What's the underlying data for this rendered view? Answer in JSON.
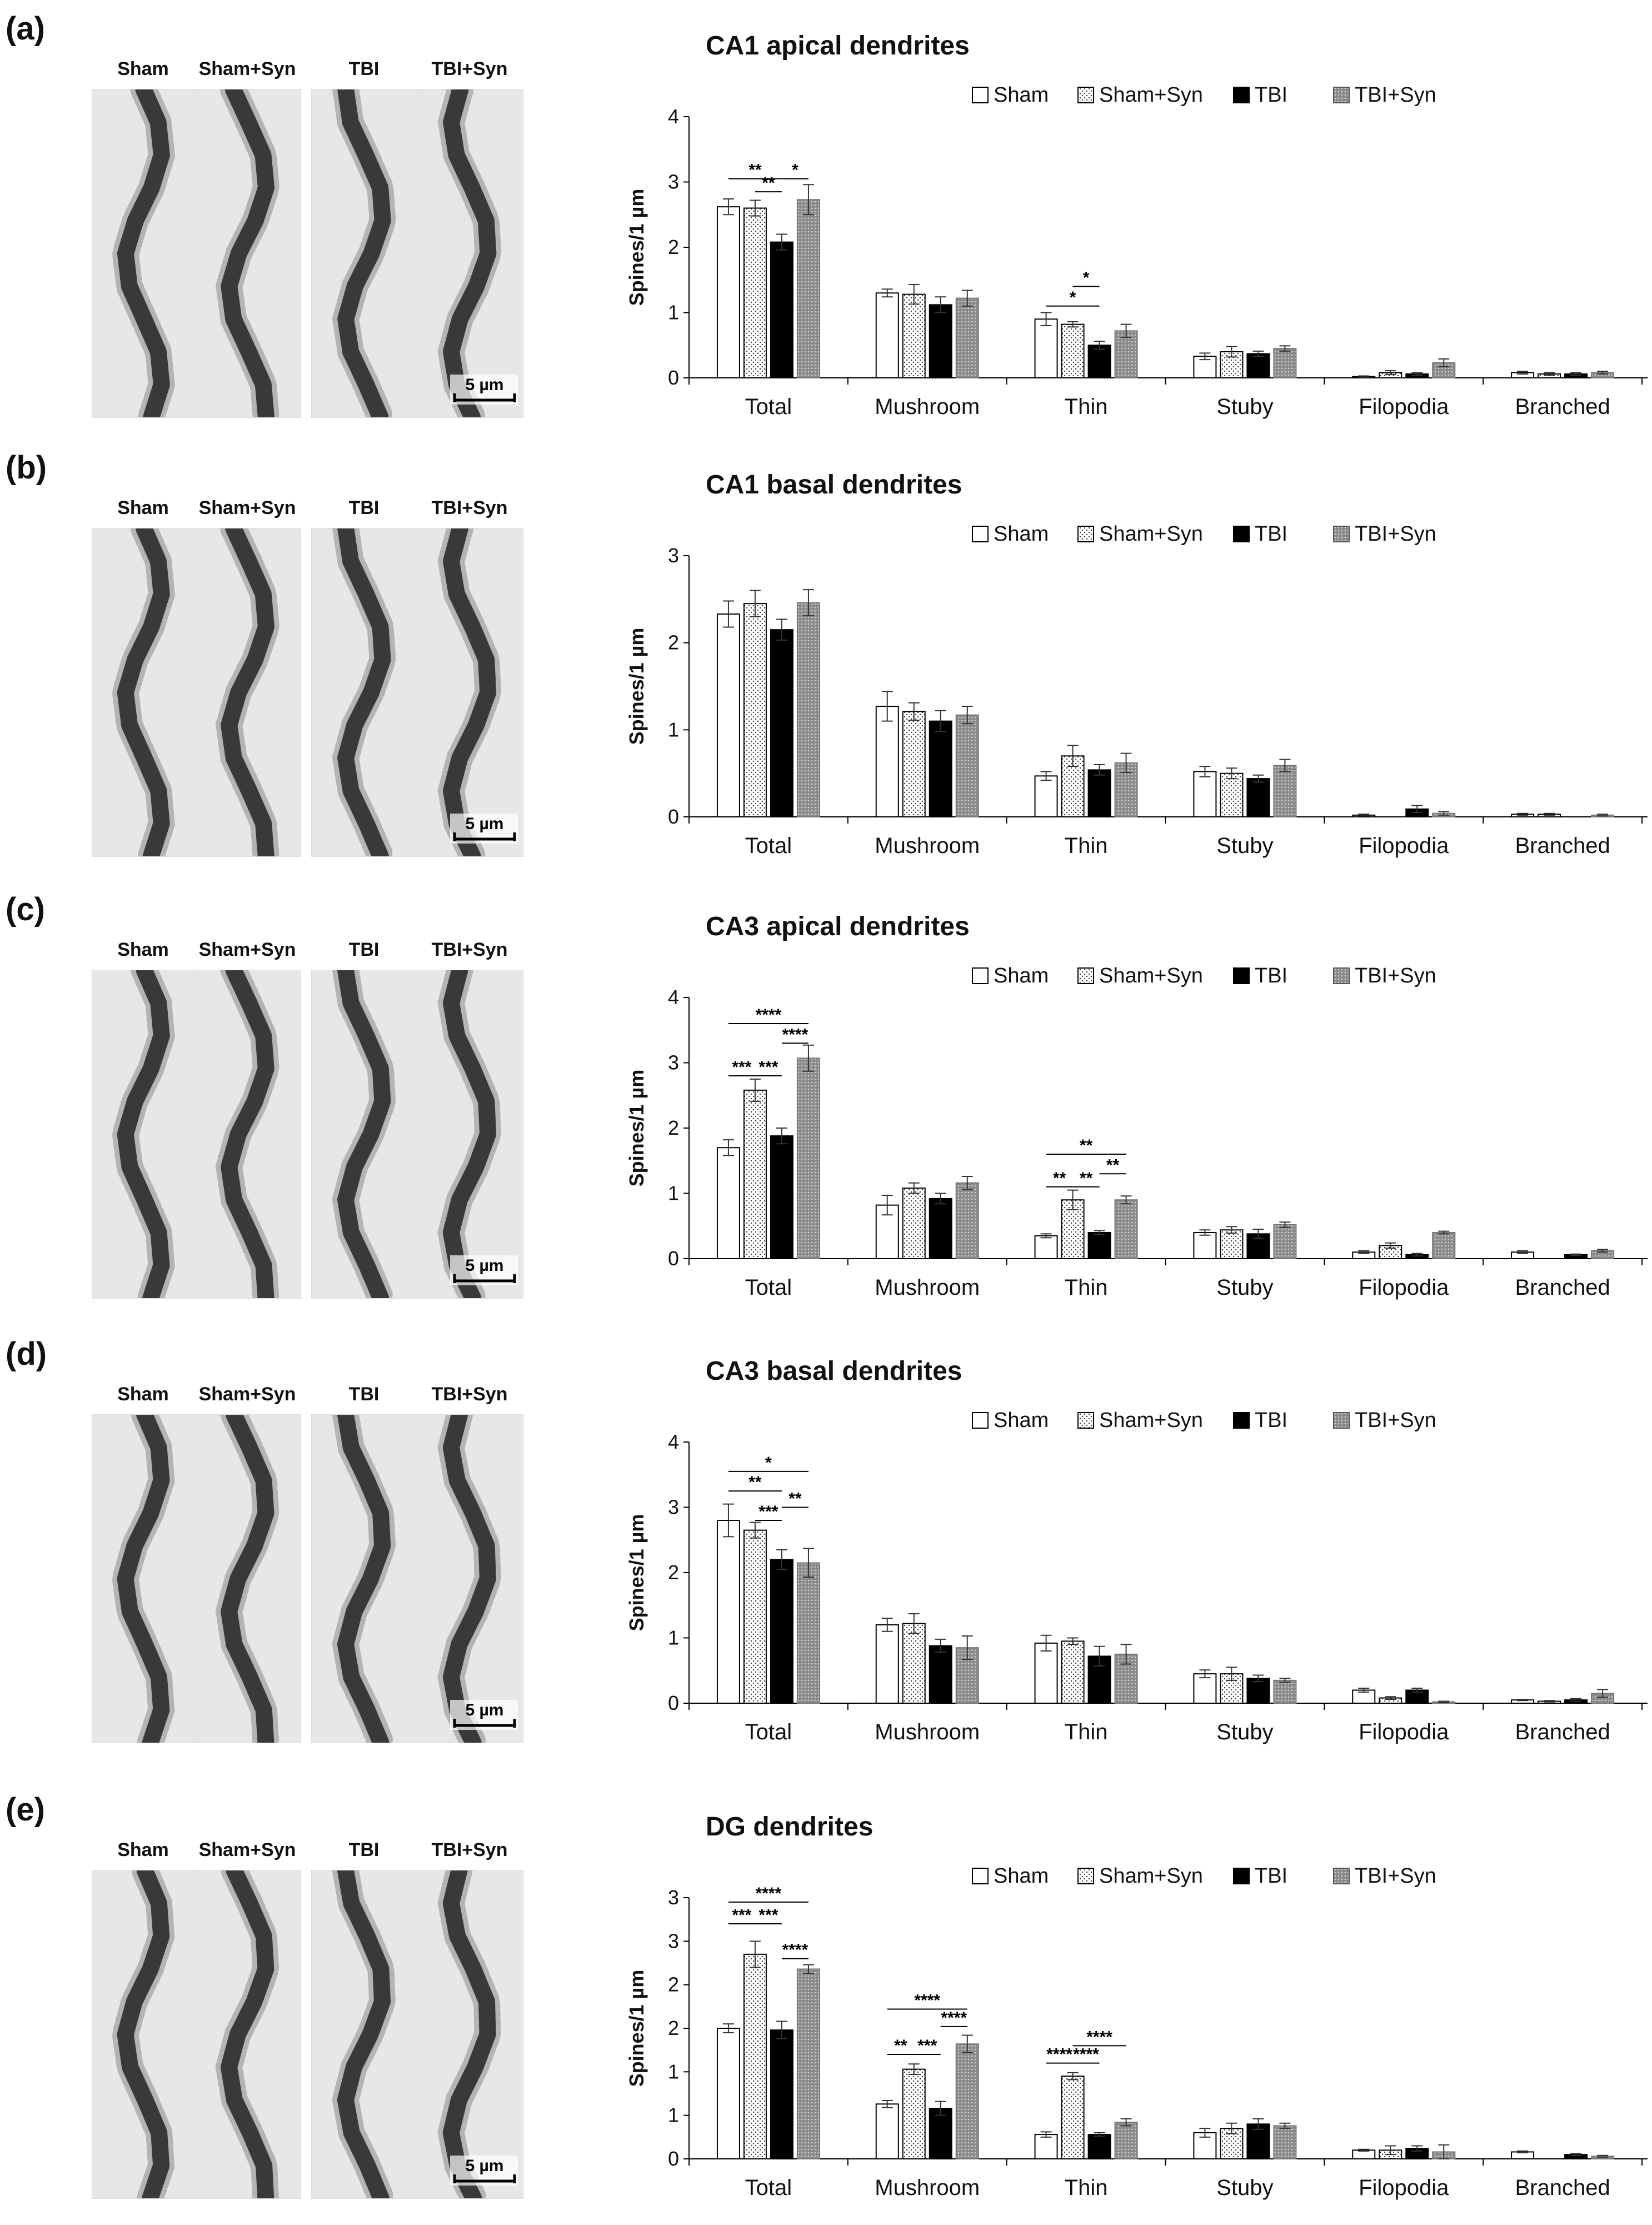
{
  "micrograph_headers": [
    "Sham",
    "Sham+Syn",
    "TBI",
    "TBI+Syn"
  ],
  "scale_bar_label": "5 µm",
  "chart_data": [
    {
      "type": "bar",
      "panel_label": "(a)",
      "title": "CA1 apical dendrites",
      "ylabel": "Spines/1 µm",
      "ylim": [
        0,
        4
      ],
      "yticks": [
        0,
        1,
        2,
        3,
        4
      ],
      "ytick_labels": [
        "0",
        "1",
        "2",
        "3",
        "4"
      ],
      "categories": [
        "Total",
        "Mushroom",
        "Thin",
        "Stuby",
        "Filopodia",
        "Branched"
      ],
      "series": [
        {
          "name": "Sham",
          "values": [
            2.62,
            1.3,
            0.9,
            0.33,
            0.02,
            0.08
          ],
          "errors": [
            0.12,
            0.06,
            0.1,
            0.05,
            0.01,
            0.02
          ]
        },
        {
          "name": "Sham+Syn",
          "values": [
            2.6,
            1.28,
            0.82,
            0.4,
            0.08,
            0.06
          ],
          "errors": [
            0.12,
            0.15,
            0.04,
            0.08,
            0.03,
            0.02
          ]
        },
        {
          "name": "TBI",
          "values": [
            2.08,
            1.12,
            0.5,
            0.37,
            0.06,
            0.06
          ],
          "errors": [
            0.12,
            0.12,
            0.06,
            0.04,
            0.02,
            0.02
          ]
        },
        {
          "name": "TBI+Syn",
          "values": [
            2.73,
            1.22,
            0.72,
            0.45,
            0.23,
            0.08
          ],
          "errors": [
            0.23,
            0.12,
            0.1,
            0.04,
            0.06,
            0.02
          ]
        }
      ],
      "significance": [
        {
          "category": "Total",
          "from": 0,
          "to": 2,
          "y": 3.05,
          "label": "**"
        },
        {
          "category": "Total",
          "from": 1,
          "to": 2,
          "y": 2.85,
          "label": "**"
        },
        {
          "category": "Total",
          "from": 2,
          "to": 3,
          "y": 3.05,
          "label": "*"
        },
        {
          "category": "Thin",
          "from": 0,
          "to": 2,
          "y": 1.1,
          "label": "*"
        },
        {
          "category": "Thin",
          "from": 1,
          "to": 2,
          "y": 1.4,
          "label": "*"
        }
      ]
    },
    {
      "type": "bar",
      "panel_label": "(b)",
      "title": "CA1 basal dendrites",
      "ylabel": "Spines/1 µm",
      "ylim": [
        0,
        3
      ],
      "yticks": [
        0,
        1,
        2,
        3
      ],
      "ytick_labels": [
        "0",
        "1",
        "2",
        "3"
      ],
      "categories": [
        "Total",
        "Mushroom",
        "Thin",
        "Stuby",
        "Filopodia",
        "Branched"
      ],
      "series": [
        {
          "name": "Sham",
          "values": [
            2.33,
            1.27,
            0.47,
            0.52,
            0.02,
            0.03
          ],
          "errors": [
            0.15,
            0.17,
            0.05,
            0.06,
            0.01,
            0.01
          ]
        },
        {
          "name": "Sham+Syn",
          "values": [
            2.45,
            1.21,
            0.7,
            0.5,
            0.0,
            0.03
          ],
          "errors": [
            0.15,
            0.1,
            0.12,
            0.06,
            0.0,
            0.01
          ]
        },
        {
          "name": "TBI",
          "values": [
            2.15,
            1.1,
            0.54,
            0.44,
            0.09,
            0.0
          ],
          "errors": [
            0.12,
            0.12,
            0.06,
            0.04,
            0.04,
            0.0
          ]
        },
        {
          "name": "TBI+Syn",
          "values": [
            2.46,
            1.17,
            0.62,
            0.59,
            0.04,
            0.02
          ],
          "errors": [
            0.15,
            0.1,
            0.11,
            0.07,
            0.02,
            0.01
          ]
        }
      ],
      "significance": []
    },
    {
      "type": "bar",
      "panel_label": "(c)",
      "title": "CA3 apical dendrites",
      "ylabel": "Spines/1 µm",
      "ylim": [
        0,
        4
      ],
      "yticks": [
        0,
        1,
        2,
        3,
        4
      ],
      "ytick_labels": [
        "0",
        "1",
        "2",
        "3",
        "4"
      ],
      "categories": [
        "Total",
        "Mushroom",
        "Thin",
        "Stuby",
        "Filopodia",
        "Branched"
      ],
      "series": [
        {
          "name": "Sham",
          "values": [
            1.7,
            0.82,
            0.35,
            0.4,
            0.1,
            0.1
          ],
          "errors": [
            0.12,
            0.15,
            0.03,
            0.04,
            0.02,
            0.02
          ]
        },
        {
          "name": "Sham+Syn",
          "values": [
            2.58,
            1.08,
            0.9,
            0.44,
            0.2,
            0.0
          ],
          "errors": [
            0.17,
            0.08,
            0.15,
            0.05,
            0.04,
            0.0
          ]
        },
        {
          "name": "TBI",
          "values": [
            1.88,
            0.92,
            0.4,
            0.38,
            0.06,
            0.06
          ],
          "errors": [
            0.12,
            0.08,
            0.03,
            0.07,
            0.02,
            0.01
          ]
        },
        {
          "name": "TBI+Syn",
          "values": [
            3.07,
            1.16,
            0.9,
            0.52,
            0.4,
            0.12
          ],
          "errors": [
            0.2,
            0.1,
            0.06,
            0.04,
            0.02,
            0.02
          ]
        }
      ],
      "significance": [
        {
          "category": "Total",
          "from": 0,
          "to": 3,
          "y": 3.6,
          "label": "****"
        },
        {
          "category": "Total",
          "from": 2,
          "to": 3,
          "y": 3.3,
          "label": "****"
        },
        {
          "category": "Total",
          "from": 0,
          "to": 1,
          "y": 2.8,
          "label": "***"
        },
        {
          "category": "Total",
          "from": 1,
          "to": 2,
          "y": 2.8,
          "label": "***"
        },
        {
          "category": "Thin",
          "from": 0,
          "to": 3,
          "y": 1.6,
          "label": "**"
        },
        {
          "category": "Thin",
          "from": 0,
          "to": 1,
          "y": 1.1,
          "label": "**"
        },
        {
          "category": "Thin",
          "from": 1,
          "to": 2,
          "y": 1.1,
          "label": "**"
        },
        {
          "category": "Thin",
          "from": 2,
          "to": 3,
          "y": 1.3,
          "label": "**"
        }
      ]
    },
    {
      "type": "bar",
      "panel_label": "(d)",
      "title": "CA3 basal dendrites",
      "ylabel": "Spines/1 µm",
      "ylim": [
        0,
        4
      ],
      "yticks": [
        0,
        1,
        2,
        3,
        4
      ],
      "ytick_labels": [
        "0",
        "1",
        "2",
        "3",
        "4"
      ],
      "categories": [
        "Total",
        "Mushroom",
        "Thin",
        "Stuby",
        "Filopodia",
        "Branched"
      ],
      "series": [
        {
          "name": "Sham",
          "values": [
            2.8,
            1.2,
            0.92,
            0.45,
            0.2,
            0.05
          ],
          "errors": [
            0.25,
            0.1,
            0.12,
            0.06,
            0.03,
            0.01
          ]
        },
        {
          "name": "Sham+Syn",
          "values": [
            2.65,
            1.22,
            0.95,
            0.45,
            0.08,
            0.03
          ],
          "errors": [
            0.12,
            0.15,
            0.05,
            0.1,
            0.02,
            0.01
          ]
        },
        {
          "name": "TBI",
          "values": [
            2.2,
            0.88,
            0.72,
            0.38,
            0.2,
            0.05
          ],
          "errors": [
            0.15,
            0.1,
            0.15,
            0.05,
            0.03,
            0.02
          ]
        },
        {
          "name": "TBI+Syn",
          "values": [
            2.15,
            0.85,
            0.75,
            0.35,
            0.02,
            0.15
          ],
          "errors": [
            0.22,
            0.18,
            0.15,
            0.03,
            0.01,
            0.06
          ]
        }
      ],
      "significance": [
        {
          "category": "Total",
          "from": 0,
          "to": 3,
          "y": 3.55,
          "label": "*"
        },
        {
          "category": "Total",
          "from": 0,
          "to": 2,
          "y": 3.25,
          "label": "**"
        },
        {
          "category": "Total",
          "from": 2,
          "to": 3,
          "y": 3.0,
          "label": "**"
        },
        {
          "category": "Total",
          "from": 1,
          "to": 2,
          "y": 2.8,
          "label": "***"
        }
      ]
    },
    {
      "type": "bar",
      "panel_label": "(e)",
      "title": "DG dendrites",
      "ylabel": "Spines/1 µm",
      "ylim": [
        0,
        3
      ],
      "yticks": [
        0,
        0.5,
        1,
        1.5,
        2,
        2.5,
        3
      ],
      "ytick_labels": [
        "0",
        "1",
        "1",
        "2",
        "2",
        "3",
        "3"
      ],
      "categories": [
        "Total",
        "Mushroom",
        "Thin",
        "Stuby",
        "Filopodia",
        "Branched"
      ],
      "series": [
        {
          "name": "Sham",
          "values": [
            1.5,
            0.63,
            0.28,
            0.3,
            0.1,
            0.08
          ],
          "errors": [
            0.05,
            0.04,
            0.03,
            0.05,
            0.01,
            0.01
          ]
        },
        {
          "name": "Sham+Syn",
          "values": [
            2.35,
            1.03,
            0.95,
            0.35,
            0.1,
            0.0
          ],
          "errors": [
            0.15,
            0.06,
            0.04,
            0.06,
            0.05,
            0.0
          ]
        },
        {
          "name": "TBI",
          "values": [
            1.48,
            0.58,
            0.28,
            0.4,
            0.12,
            0.05
          ],
          "errors": [
            0.1,
            0.08,
            0.02,
            0.06,
            0.03,
            0.01
          ]
        },
        {
          "name": "TBI+Syn",
          "values": [
            2.18,
            1.32,
            0.42,
            0.38,
            0.08,
            0.03
          ],
          "errors": [
            0.05,
            0.1,
            0.04,
            0.03,
            0.08,
            0.01
          ]
        }
      ],
      "significance": [
        {
          "category": "Total",
          "from": 0,
          "to": 3,
          "y": 2.95,
          "label": "****"
        },
        {
          "category": "Total",
          "from": 0,
          "to": 1,
          "y": 2.7,
          "label": "***"
        },
        {
          "category": "Total",
          "from": 1,
          "to": 2,
          "y": 2.7,
          "label": "***"
        },
        {
          "category": "Total",
          "from": 2,
          "to": 3,
          "y": 2.3,
          "label": "****"
        },
        {
          "category": "Mushroom",
          "from": 0,
          "to": 3,
          "y": 1.72,
          "label": "****"
        },
        {
          "category": "Mushroom",
          "from": 2,
          "to": 3,
          "y": 1.52,
          "label": "****"
        },
        {
          "category": "Mushroom",
          "from": 0,
          "to": 1,
          "y": 1.2,
          "label": "**"
        },
        {
          "category": "Mushroom",
          "from": 1,
          "to": 2,
          "y": 1.2,
          "label": "***"
        },
        {
          "category": "Thin",
          "from": 0,
          "to": 1,
          "y": 1.1,
          "label": "****"
        },
        {
          "category": "Thin",
          "from": 1,
          "to": 2,
          "y": 1.1,
          "label": "****"
        },
        {
          "category": "Thin",
          "from": 1,
          "to": 3,
          "y": 1.3,
          "label": "****"
        }
      ]
    }
  ]
}
